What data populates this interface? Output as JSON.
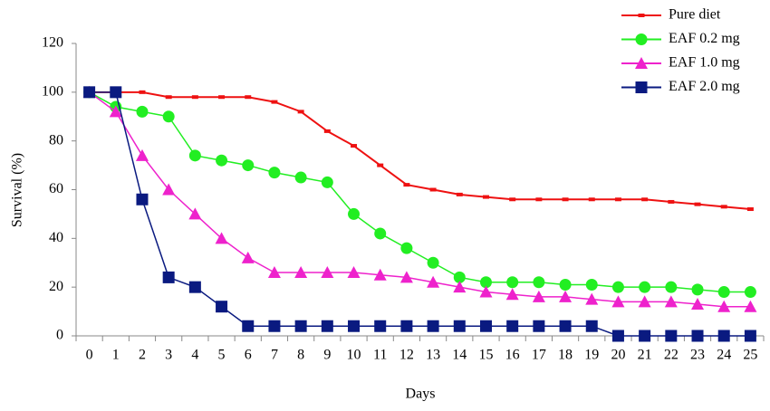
{
  "chart_data": {
    "type": "line",
    "x_label": "Days",
    "y_label": "Survival (%)",
    "categories": [
      "0",
      "1",
      "2",
      "3",
      "4",
      "5",
      "6",
      "7",
      "8",
      "9",
      "10",
      "11",
      "12",
      "13",
      "14",
      "15",
      "16",
      "17",
      "18",
      "19",
      "20",
      "21",
      "22",
      "23",
      "24",
      "25"
    ],
    "ylim": [
      0,
      120
    ],
    "yticks": [
      0,
      20,
      40,
      60,
      80,
      100,
      120
    ],
    "grid": false,
    "legend": "top-right",
    "series": [
      {
        "name": "Pure diet",
        "color": "#ee1111",
        "marker": "dash",
        "values": [
          100,
          100,
          100,
          98,
          98,
          98,
          98,
          96,
          92,
          84,
          78,
          70,
          62,
          60,
          58,
          57,
          56,
          56,
          56,
          56,
          56,
          56,
          55,
          54,
          53,
          52
        ]
      },
      {
        "name": "EAF 0.2 mg",
        "color": "#22ee22",
        "marker": "circle",
        "values": [
          100,
          94,
          92,
          90,
          74,
          72,
          70,
          67,
          65,
          63,
          50,
          42,
          36,
          30,
          24,
          22,
          22,
          22,
          21,
          21,
          20,
          20,
          20,
          19,
          18,
          18
        ]
      },
      {
        "name": "EAF 1.0 mg",
        "color": "#ee22cc",
        "marker": "triangle",
        "values": [
          100,
          92,
          74,
          60,
          50,
          40,
          32,
          26,
          26,
          26,
          26,
          25,
          24,
          22,
          20,
          18,
          17,
          16,
          16,
          15,
          14,
          14,
          14,
          13,
          12,
          12
        ]
      },
      {
        "name": "EAF 2.0 mg",
        "color": "#0a1a80",
        "marker": "square",
        "values": [
          100,
          100,
          56,
          24,
          20,
          12,
          4,
          4,
          4,
          4,
          4,
          4,
          4,
          4,
          4,
          4,
          4,
          4,
          4,
          4,
          0,
          0,
          0,
          0,
          0,
          0
        ]
      }
    ]
  }
}
